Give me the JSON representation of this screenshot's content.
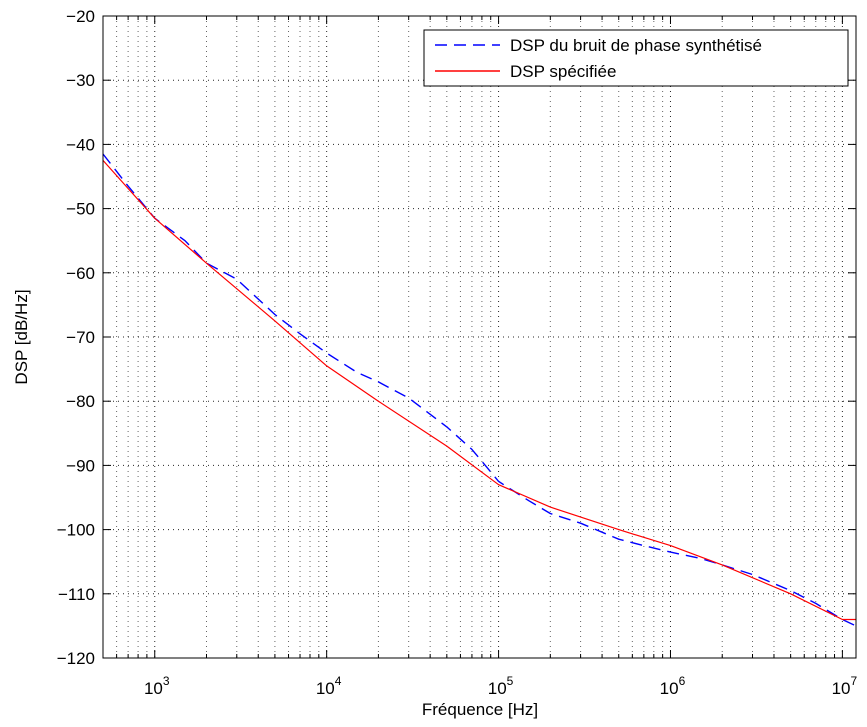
{
  "chart_data": {
    "type": "line",
    "title": "",
    "xlabel": "Fréquence [Hz]",
    "ylabel": "DSP [dB/Hz]",
    "xscale": "log",
    "xlim": [
      500,
      12000000
    ],
    "ylim": [
      -120,
      -20
    ],
    "grid": true,
    "legend_position": "top-right",
    "x_ticks": [
      1000,
      10000,
      100000,
      1000000,
      10000000
    ],
    "x_tick_labels": [
      {
        "base": "10",
        "exp": "3"
      },
      {
        "base": "10",
        "exp": "4"
      },
      {
        "base": "10",
        "exp": "5"
      },
      {
        "base": "10",
        "exp": "6"
      },
      {
        "base": "10",
        "exp": "7"
      }
    ],
    "y_ticks": [
      -120,
      -110,
      -100,
      -90,
      -80,
      -70,
      -60,
      -50,
      -40,
      -30,
      -20
    ],
    "y_tick_labels": [
      "−120",
      "−110",
      "−100",
      "−90",
      "−80",
      "−70",
      "−60",
      "−50",
      "−40",
      "−30",
      "−20"
    ],
    "series": [
      {
        "name": "DSP du bruit de phase synthétisé",
        "color": "#0000ff",
        "style": "dashed",
        "x": [
          500,
          700,
          1000,
          1500,
          2000,
          3000,
          5000,
          7000,
          10000,
          15000,
          20000,
          30000,
          50000,
          70000,
          100000,
          150000,
          200000,
          300000,
          500000,
          700000,
          1000000,
          1500000,
          2000000,
          3000000,
          5000000,
          7000000,
          10000000,
          12000000
        ],
        "y": [
          -41.5,
          -46.5,
          -51.5,
          -55,
          -58.5,
          -61,
          -66.5,
          -69.5,
          -72.5,
          -75.5,
          -77,
          -79.5,
          -84,
          -87.5,
          -92.5,
          -95.5,
          -97.5,
          -99,
          -101.5,
          -102.5,
          -103.5,
          -104.5,
          -105.5,
          -107,
          -109.5,
          -111.5,
          -114,
          -115
        ]
      },
      {
        "name": "DSP spécifiée",
        "color": "#ff0000",
        "style": "solid",
        "x": [
          500,
          1000,
          2000,
          5000,
          10000,
          20000,
          50000,
          100000,
          200000,
          500000,
          1000000,
          2000000,
          5000000,
          10000000,
          12000000
        ],
        "y": [
          -42.5,
          -51.5,
          -58.5,
          -67.5,
          -74.5,
          -80,
          -87,
          -93,
          -96.5,
          -100,
          -102.5,
          -105.5,
          -110,
          -114,
          -114
        ]
      }
    ]
  }
}
